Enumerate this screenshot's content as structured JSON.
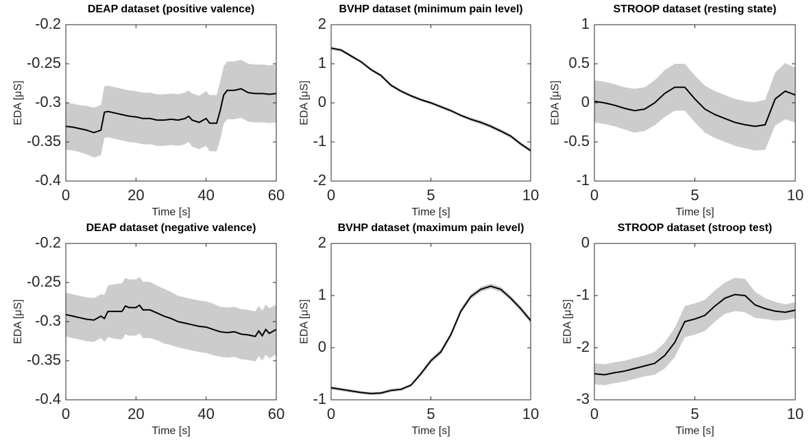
{
  "chart_data": [
    {
      "type": "line",
      "title": "DEAP dataset (positive valence)",
      "xlabel": "Time [s]",
      "ylabel": "EDA [μS]",
      "x": [
        0,
        2,
        4,
        6,
        8,
        10,
        11,
        12,
        14,
        16,
        18,
        20,
        22,
        24,
        26,
        28,
        30,
        32,
        34,
        35,
        36,
        38,
        40,
        41,
        43,
        44,
        45,
        46,
        48,
        50,
        52,
        54,
        56,
        58,
        60
      ],
      "values": [
        -0.33,
        -0.331,
        -0.333,
        -0.335,
        -0.338,
        -0.335,
        -0.312,
        -0.311,
        -0.313,
        -0.315,
        -0.317,
        -0.318,
        -0.32,
        -0.32,
        -0.322,
        -0.322,
        -0.321,
        -0.322,
        -0.32,
        -0.317,
        -0.322,
        -0.325,
        -0.32,
        -0.326,
        -0.326,
        -0.31,
        -0.29,
        -0.284,
        -0.284,
        -0.282,
        -0.287,
        -0.288,
        -0.288,
        -0.289,
        -0.288
      ],
      "errors": [
        0.03,
        0.03,
        0.03,
        0.031,
        0.032,
        0.032,
        0.033,
        0.033,
        0.033,
        0.033,
        0.033,
        0.033,
        0.033,
        0.033,
        0.033,
        0.033,
        0.033,
        0.033,
        0.033,
        0.033,
        0.034,
        0.034,
        0.035,
        0.036,
        0.036,
        0.037,
        0.037,
        0.037,
        0.037,
        0.037,
        0.037,
        0.037,
        0.037,
        0.037,
        0.037
      ],
      "color": "#000000",
      "band_color": "#cccccc",
      "xlim": [
        0,
        60
      ],
      "xticks": [
        0,
        20,
        40,
        60
      ],
      "ylim": [
        -0.4,
        -0.2
      ],
      "yticks": [
        -0.4,
        -0.35,
        -0.3,
        -0.25,
        -0.2
      ]
    },
    {
      "type": "line",
      "title": "BVHP dataset (minimum pain level)",
      "xlabel": "Time [s]",
      "ylabel": "EDA [μS]",
      "x": [
        0,
        0.5,
        1,
        1.5,
        2,
        2.5,
        3,
        3.5,
        4,
        4.5,
        5,
        5.5,
        6,
        6.5,
        7,
        7.5,
        8,
        8.5,
        9,
        9.5,
        10
      ],
      "values": [
        1.4,
        1.35,
        1.2,
        1.05,
        0.85,
        0.7,
        0.45,
        0.3,
        0.18,
        0.08,
        0.0,
        -0.1,
        -0.2,
        -0.32,
        -0.42,
        -0.5,
        -0.6,
        -0.72,
        -0.85,
        -1.05,
        -1.22
      ],
      "errors": [
        0.04,
        0.04,
        0.04,
        0.04,
        0.04,
        0.04,
        0.04,
        0.04,
        0.04,
        0.04,
        0.04,
        0.04,
        0.04,
        0.04,
        0.04,
        0.05,
        0.05,
        0.05,
        0.05,
        0.05,
        0.05
      ],
      "color": "#000000",
      "band_color": "#cccccc",
      "xlim": [
        0,
        10
      ],
      "xticks": [
        0,
        5,
        10
      ],
      "ylim": [
        -2,
        2
      ],
      "yticks": [
        -2,
        -1,
        0,
        1,
        2
      ]
    },
    {
      "type": "line",
      "title": "STROOP dataset (resting state)",
      "xlabel": "Time [s]",
      "ylabel": "EDA [μS]",
      "x": [
        0,
        0.5,
        1,
        1.5,
        2,
        2.5,
        3,
        3.5,
        4,
        4.5,
        5,
        5.5,
        6,
        6.5,
        7,
        7.5,
        8,
        8.5,
        9,
        9.5,
        10
      ],
      "values": [
        0.02,
        0.0,
        -0.03,
        -0.07,
        -0.1,
        -0.08,
        0.0,
        0.12,
        0.2,
        0.2,
        0.05,
        -0.08,
        -0.15,
        -0.2,
        -0.25,
        -0.28,
        -0.3,
        -0.28,
        0.05,
        0.15,
        0.1
      ],
      "errors": [
        0.27,
        0.27,
        0.27,
        0.27,
        0.28,
        0.28,
        0.29,
        0.3,
        0.3,
        0.3,
        0.3,
        0.3,
        0.3,
        0.3,
        0.3,
        0.3,
        0.31,
        0.32,
        0.34,
        0.36,
        0.35
      ],
      "color": "#000000",
      "band_color": "#cccccc",
      "xlim": [
        0,
        10
      ],
      "xticks": [
        0,
        5,
        10
      ],
      "ylim": [
        -1,
        1
      ],
      "yticks": [
        -1,
        -0.5,
        0,
        0.5,
        1
      ]
    },
    {
      "type": "line",
      "title": "DEAP dataset (negative valence)",
      "xlabel": "Time [s]",
      "ylabel": "EDA [μS]",
      "x": [
        0,
        2,
        4,
        6,
        8,
        10,
        11,
        12,
        14,
        16,
        17,
        18,
        20,
        21,
        22,
        24,
        26,
        28,
        30,
        32,
        34,
        36,
        38,
        40,
        42,
        44,
        46,
        48,
        50,
        52,
        54,
        55,
        56,
        57,
        58,
        60
      ],
      "values": [
        -0.291,
        -0.293,
        -0.295,
        -0.297,
        -0.298,
        -0.293,
        -0.296,
        -0.287,
        -0.287,
        -0.287,
        -0.28,
        -0.282,
        -0.282,
        -0.279,
        -0.285,
        -0.285,
        -0.289,
        -0.293,
        -0.296,
        -0.3,
        -0.302,
        -0.304,
        -0.306,
        -0.307,
        -0.31,
        -0.313,
        -0.314,
        -0.313,
        -0.316,
        -0.317,
        -0.319,
        -0.312,
        -0.318,
        -0.31,
        -0.315,
        -0.31
      ],
      "errors": [
        0.028,
        0.028,
        0.028,
        0.028,
        0.028,
        0.028,
        0.03,
        0.033,
        0.035,
        0.036,
        0.036,
        0.036,
        0.036,
        0.036,
        0.036,
        0.036,
        0.035,
        0.035,
        0.034,
        0.033,
        0.033,
        0.033,
        0.033,
        0.033,
        0.033,
        0.032,
        0.032,
        0.032,
        0.032,
        0.032,
        0.032,
        0.032,
        0.032,
        0.032,
        0.032,
        0.032
      ],
      "color": "#000000",
      "band_color": "#cccccc",
      "xlim": [
        0,
        60
      ],
      "xticks": [
        0,
        20,
        40,
        60
      ],
      "ylim": [
        -0.4,
        -0.2
      ],
      "yticks": [
        -0.4,
        -0.35,
        -0.3,
        -0.25,
        -0.2
      ]
    },
    {
      "type": "line",
      "title": "BVHP dataset (maximum pain level)",
      "xlabel": "Time [s]",
      "ylabel": "EDA [μS]",
      "x": [
        0,
        0.5,
        1,
        1.5,
        2,
        2.5,
        3,
        3.5,
        4,
        4.5,
        5,
        5.5,
        6,
        6.5,
        7,
        7.5,
        8,
        8.5,
        9,
        9.5,
        10
      ],
      "values": [
        -0.77,
        -0.8,
        -0.83,
        -0.86,
        -0.88,
        -0.87,
        -0.82,
        -0.8,
        -0.72,
        -0.5,
        -0.25,
        -0.08,
        0.25,
        0.7,
        0.98,
        1.12,
        1.18,
        1.12,
        0.95,
        0.75,
        0.52
      ],
      "errors": [
        0.03,
        0.03,
        0.03,
        0.03,
        0.03,
        0.03,
        0.03,
        0.03,
        0.03,
        0.04,
        0.05,
        0.05,
        0.05,
        0.05,
        0.05,
        0.05,
        0.05,
        0.05,
        0.05,
        0.05,
        0.05
      ],
      "color": "#000000",
      "band_color": "#cccccc",
      "xlim": [
        0,
        10
      ],
      "xticks": [
        0,
        5,
        10
      ],
      "ylim": [
        -1,
        2
      ],
      "yticks": [
        -1,
        0,
        1,
        2
      ]
    },
    {
      "type": "line",
      "title": "STROOP dataset (stroop test)",
      "xlabel": "Time [s]",
      "ylabel": "EDA [μS]",
      "x": [
        0,
        0.5,
        1,
        1.5,
        2,
        2.5,
        3,
        3.5,
        4,
        4.5,
        5,
        5.5,
        6,
        6.5,
        7,
        7.5,
        8,
        8.5,
        9,
        9.5,
        10
      ],
      "values": [
        -2.5,
        -2.52,
        -2.48,
        -2.45,
        -2.4,
        -2.35,
        -2.3,
        -2.15,
        -1.9,
        -1.5,
        -1.45,
        -1.38,
        -1.2,
        -1.05,
        -0.98,
        -1.0,
        -1.18,
        -1.25,
        -1.3,
        -1.32,
        -1.28
      ],
      "errors": [
        0.2,
        0.2,
        0.2,
        0.2,
        0.2,
        0.2,
        0.22,
        0.25,
        0.28,
        0.3,
        0.3,
        0.3,
        0.3,
        0.3,
        0.32,
        0.32,
        0.25,
        0.2,
        0.18,
        0.15,
        0.15
      ],
      "color": "#000000",
      "band_color": "#cccccc",
      "xlim": [
        0,
        10
      ],
      "xticks": [
        0,
        5,
        10
      ],
      "ylim": [
        -3,
        0
      ],
      "yticks": [
        -3,
        -2,
        -1,
        0
      ]
    }
  ]
}
